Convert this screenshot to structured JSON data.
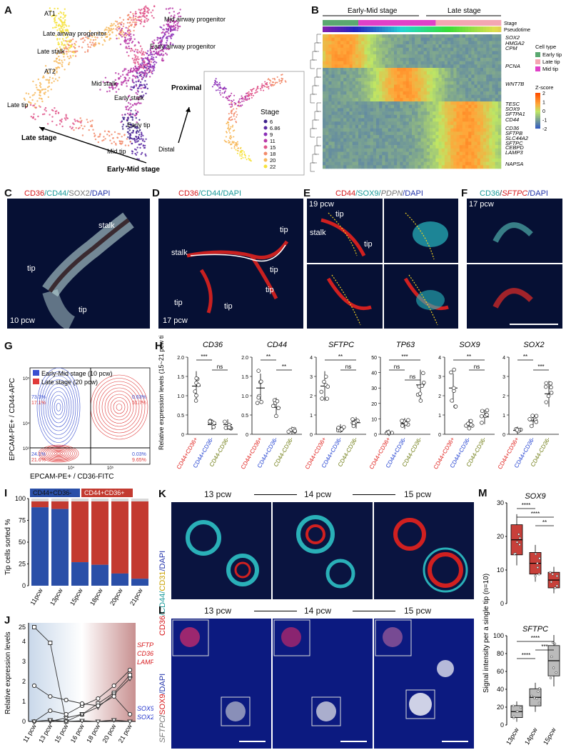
{
  "panels": {
    "A": "A",
    "B": "B",
    "C": "C",
    "D": "D",
    "E": "E",
    "F": "F",
    "G": "G",
    "H": "H",
    "I": "I",
    "J": "J",
    "K": "K",
    "L": "L",
    "M": "M"
  },
  "panelA": {
    "labels": [
      "AT1",
      "Late airway progenitor",
      "Mid airway progenitor",
      "Early airway progenitor",
      "Late stalk",
      "AT2",
      "Mid stalk",
      "Early stalk",
      "Late tip",
      "Early tip",
      "Mid tip"
    ],
    "proximal": "Proximal",
    "distal": "Distal",
    "late_stage": "Late stage",
    "early_mid_stage": "Early-Mid stage",
    "legend_title": "Stage",
    "stages": [
      "6",
      "6.86",
      "9",
      "11",
      "15",
      "18",
      "20",
      "22"
    ],
    "stage_colors": [
      "#3b1f8a",
      "#5a2aa3",
      "#8a2fb8",
      "#b83aa8",
      "#e0558a",
      "#f28a6a",
      "#f7b85a",
      "#f6e23c"
    ]
  },
  "panelB": {
    "early_mid": "Early-Mid stage",
    "late": "Late stage",
    "stage_row": "Stage",
    "pseudotime_row": "Pseudotime",
    "genes": [
      "SOX2",
      "HMGA2",
      "CPM",
      "PCNA",
      "WNT7B",
      "TESC",
      "SOX9",
      "SFTPA1",
      "CD44",
      "CD36",
      "SFTPB",
      "SLC44A2",
      "SFTPC",
      "CEBPD",
      "LAMP3",
      "NAPSA"
    ],
    "celltype_title": "Cell type",
    "celltypes": [
      "Early tip",
      "Late tip",
      "Mid tip"
    ],
    "celltype_colors": [
      "#5aa870",
      "#f4a6b2",
      "#e040c8"
    ],
    "zscore_title": "Z-score",
    "zscore_ticks": [
      "2",
      "1",
      "0",
      "-1",
      "-2"
    ]
  },
  "panelC": {
    "title_parts": [
      "CD36",
      "/CD44/",
      "SOX2",
      "/DAPI"
    ],
    "labels": [
      "stalk",
      "tip",
      "tip"
    ],
    "age": "10 pcw"
  },
  "panelD": {
    "title_parts": [
      "CD36",
      "/CD44/DAPI"
    ],
    "labels": [
      "stalk",
      "tip",
      "tip",
      "tip",
      "tip",
      "tip"
    ],
    "age": "17 pcw"
  },
  "panelE": {
    "title_parts": [
      "CD44",
      "/SOX9/",
      "PDPN",
      "/DAPI"
    ],
    "labels": [
      "tip",
      "stalk",
      "tip"
    ],
    "age": "19 pcw"
  },
  "panelF": {
    "title_parts": [
      "CD36",
      "/",
      "SFTPC",
      "/DAPI"
    ],
    "age": "17 pcw"
  },
  "panelG": {
    "legend": [
      "Early-Mid stage (10 pcw)",
      "Late stage (20 pcw)"
    ],
    "ylabel": "EPCAM-PE+ / CD44-APC",
    "xlabel": "EPCAM-PE+ / CD36-FITC",
    "q_tl": [
      "73.3%",
      "17.1%"
    ],
    "q_tr": [
      "0.63%",
      "51.7%"
    ],
    "q_bl": [
      "24.1%",
      "21.6%"
    ],
    "q_br": [
      "0.03%",
      "9.65%"
    ],
    "ticks": [
      "10⁵",
      "10⁴",
      "10³",
      "10⁴",
      "10⁵"
    ]
  },
  "panelH": {
    "ylabel": "Relative expression levels (15~21 pcw tissues)",
    "categories": [
      "CD44+CD36+",
      "CD44+CD36-",
      "CD44-CD36-"
    ],
    "cat_colors": [
      "#e0201c",
      "#1f3fd0",
      "#6d7a10"
    ],
    "charts": [
      {
        "title": "CD36",
        "ymax": 2.0,
        "ticks": [
          "0",
          "0.5",
          "1.0",
          "1.5",
          "2.0"
        ],
        "means": [
          1.25,
          0.25,
          0.25
        ],
        "sig": [
          {
            "label": "***",
            "a": 0,
            "b": 1
          },
          {
            "label": "ns",
            "a": 1,
            "b": 2
          }
        ]
      },
      {
        "title": "CD44",
        "ymax": 2.0,
        "ticks": [
          "0",
          "0.5",
          "1.0",
          "1.5",
          "2.0"
        ],
        "means": [
          1.2,
          0.7,
          0.1
        ],
        "sig": [
          {
            "label": "**",
            "a": 0,
            "b": 1
          },
          {
            "label": "**",
            "a": 1,
            "b": 2
          }
        ]
      },
      {
        "title": "SFTPC",
        "ymax": 4.0,
        "ticks": [
          "0",
          "1",
          "2",
          "3",
          "4"
        ],
        "means": [
          2.5,
          0.3,
          0.6
        ],
        "sig": [
          {
            "label": "**",
            "a": 0,
            "b": 2
          },
          {
            "label": "ns",
            "a": 1,
            "b": 2
          }
        ]
      },
      {
        "title": "TP63",
        "ymax": 50,
        "ticks": [
          "0",
          "10",
          "20",
          "30",
          "40",
          "50"
        ],
        "means": [
          1,
          7,
          32
        ],
        "sig": [
          {
            "label": "***",
            "a": 0,
            "b": 2
          },
          {
            "label": "ns",
            "a": 0,
            "b": 1
          },
          {
            "label": "ns",
            "a": 1,
            "b": 2
          }
        ]
      },
      {
        "title": "SOX9",
        "ymax": 4,
        "ticks": [
          "0",
          "1",
          "2",
          "3",
          "4"
        ],
        "means": [
          2.4,
          0.5,
          0.9
        ],
        "sig": [
          {
            "label": "**",
            "a": 0,
            "b": 2
          },
          {
            "label": "ns",
            "a": 1,
            "b": 2
          }
        ]
      },
      {
        "title": "SOX2",
        "ymax": 4,
        "ticks": [
          "0",
          "1",
          "2",
          "3",
          "4"
        ],
        "means": [
          0.2,
          0.7,
          2.1
        ],
        "sig": [
          {
            "label": "**",
            "a": 0,
            "b": 1
          },
          {
            "label": "***",
            "a": 1,
            "b": 2
          }
        ]
      }
    ]
  },
  "panelI": {
    "ylabel": "Tip cells sorted %",
    "legend": [
      "CD44+CD36-",
      "CD44+CD36+"
    ],
    "colors": [
      "#2a4fa8",
      "#c33a30"
    ],
    "ticks": [
      "0",
      "25",
      "50",
      "75",
      "100"
    ],
    "categories": [
      "11pcw",
      "13pcw",
      "15pcw",
      "18pcw",
      "20pcw",
      "21pcw"
    ],
    "blue": [
      90,
      88,
      27,
      24,
      14,
      8
    ]
  },
  "panelJ": {
    "ylabel": "Relative expression levels",
    "ticks": [
      "0",
      "1",
      "2",
      "3",
      "4",
      "25"
    ],
    "categories": [
      "11 pcw",
      "13 pcw",
      "15 pcw",
      "16 pcw",
      "18 pcw",
      "20 pcw",
      "21 pcw"
    ],
    "late_genes": [
      "SFTPC",
      "CD36",
      "LAMP3"
    ],
    "early_genes": [
      "SOX9",
      "SOX2"
    ]
  },
  "panelK": {
    "title_parts": [
      "CD36",
      "/CD44/",
      "CD31",
      "/DAPI"
    ],
    "stages": [
      "13 pcw",
      "14 pcw",
      "15 pcw"
    ]
  },
  "panelL": {
    "title_parts": [
      "SFTPC",
      "/",
      "SOX9",
      "/DAPI"
    ],
    "stages": [
      "13 pcw",
      "14 pcw",
      "15 pcw"
    ]
  },
  "panelM": {
    "ylabel": "Signal intensity per a single tip (n=10)",
    "categories": [
      "13pcw",
      "14pcw",
      "15pcw"
    ],
    "sox9": {
      "title": "SOX9",
      "ymax": 30,
      "ticks": [
        "0",
        "10",
        "20",
        "30"
      ],
      "medians": [
        19,
        12,
        7
      ],
      "sig": [
        {
          "label": "****",
          "a": 0,
          "b": 1
        },
        {
          "label": "****",
          "a": 0,
          "b": 2
        },
        {
          "label": "**",
          "a": 1,
          "b": 2
        }
      ]
    },
    "sftpc": {
      "title": "SFTPC",
      "ymax": 100,
      "ticks": [
        "0",
        "20",
        "40",
        "60",
        "80",
        "100"
      ],
      "medians": [
        15,
        31,
        72
      ],
      "sig": [
        {
          "label": "****",
          "a": 0,
          "b": 2
        },
        {
          "label": "***",
          "a": 1,
          "b": 2
        },
        {
          "label": "****",
          "a": 0,
          "b": 1
        }
      ]
    }
  }
}
